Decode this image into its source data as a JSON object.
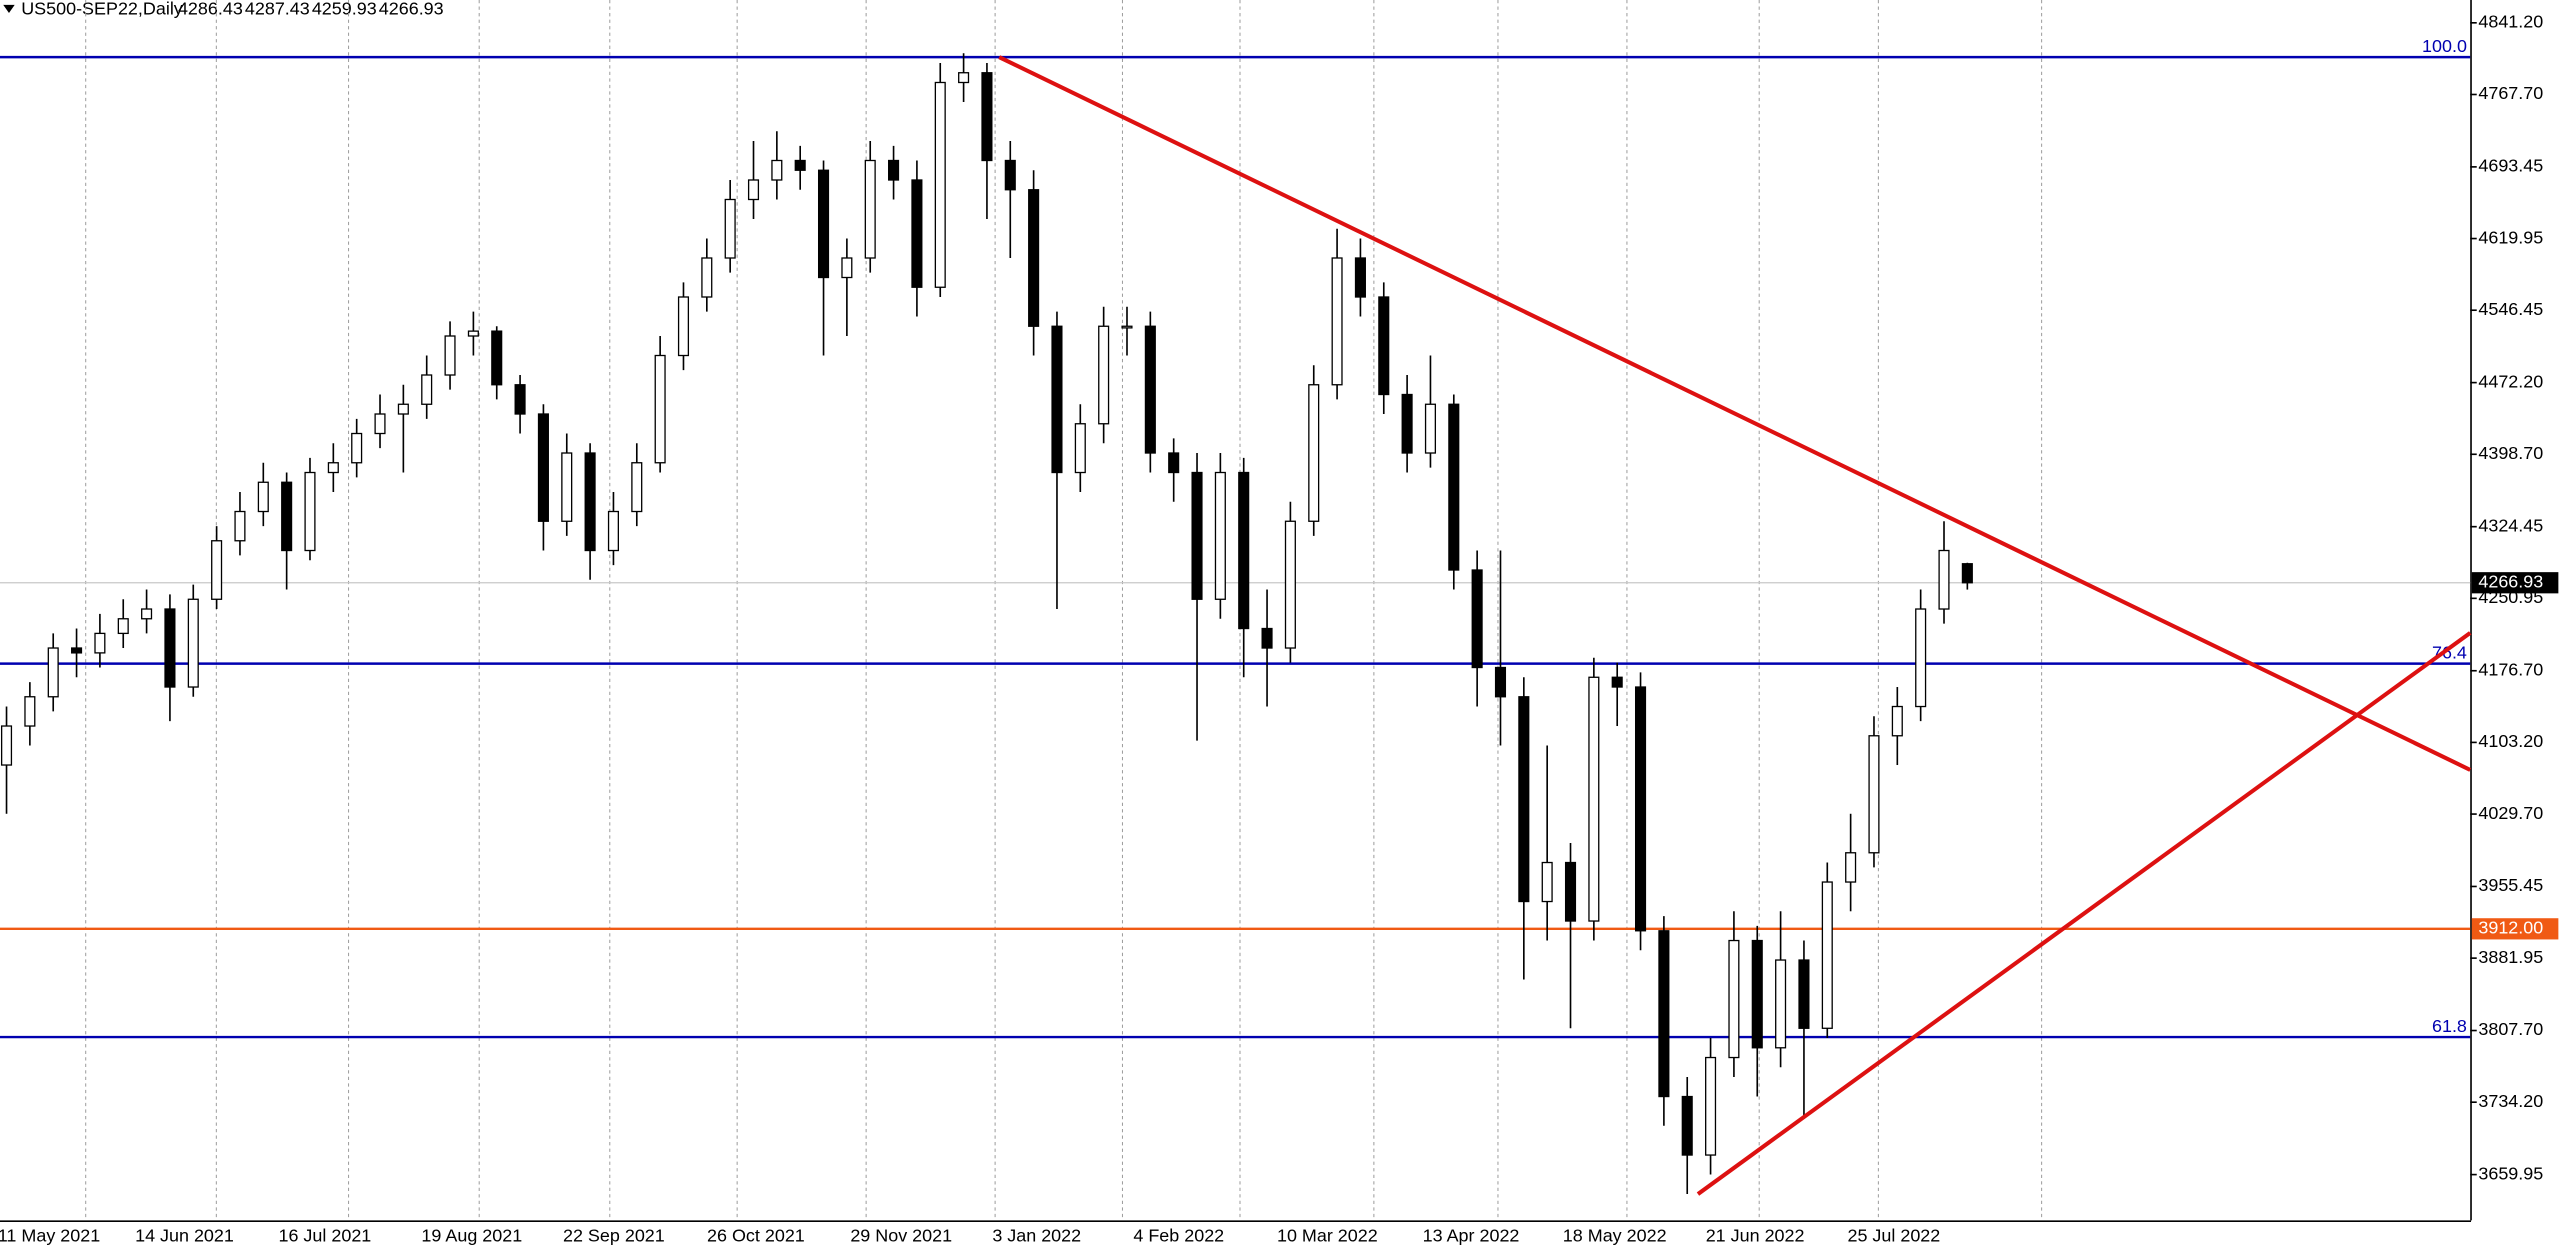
{
  "chart_data": {
    "type": "candlestick",
    "symbol": "US500-SEP22,Daily",
    "header_ohlc": [
      4286.43,
      4287.43,
      4259.93,
      4266.93
    ],
    "up_color": "#ffffff",
    "down_color": "#000000",
    "ylim": [
      3613,
      4864.6
    ],
    "yticks": [
      {
        "value": 4841.2,
        "label": "4841.20"
      },
      {
        "value": 4767.7,
        "label": "4767.70"
      },
      4693.45,
      4619.95,
      4546.45,
      {
        "value": 4472.2,
        "label": "4472.20"
      },
      {
        "value": 4398.7,
        "label": "4398.70"
      },
      4324.45,
      4250.95,
      {
        "value": 4176.7,
        "label": "4176.70"
      },
      {
        "value": 4103.2,
        "label": "4103.20"
      },
      {
        "value": 4029.7,
        "label": "4029.70"
      },
      3955.45,
      3881.95,
      {
        "value": 3807.7,
        "label": "3807.70"
      },
      {
        "value": 3734.2,
        "label": "3734.20"
      },
      3659.95
    ],
    "categories": [
      "11 May 2021",
      "14 Jun 2021",
      "16 Jul 2021",
      "19 Aug 2021",
      "22 Sep 2021",
      "26 Oct 2021",
      "29 Nov 2021",
      "3 Jan 2022",
      "4 Feb 2022",
      "10 Mar 2022",
      "13 Apr 2022",
      "18 May 2022",
      "21 Jun 2022",
      "25 Jul 2022"
    ],
    "ohlc": [
      [
        4080,
        4140,
        4030,
        4120
      ],
      [
        4120,
        4165,
        4100,
        4150
      ],
      [
        4150,
        4215,
        4135,
        4200
      ],
      [
        4200,
        4220,
        4170,
        4195
      ],
      [
        4195,
        4235,
        4180,
        4215
      ],
      [
        4215,
        4250,
        4200,
        4230
      ],
      [
        4230,
        4260,
        4215,
        4240
      ],
      [
        4240,
        4255,
        4125,
        4160
      ],
      [
        4160,
        4265,
        4150,
        4250
      ],
      [
        4250,
        4325,
        4240,
        4310
      ],
      [
        4310,
        4360,
        4295,
        4340
      ],
      [
        4340,
        4390,
        4325,
        4370
      ],
      [
        4370,
        4380,
        4260,
        4300
      ],
      [
        4300,
        4395,
        4290,
        4380
      ],
      [
        4380,
        4410,
        4360,
        4390
      ],
      [
        4390,
        4435,
        4375,
        4420
      ],
      [
        4420,
        4460,
        4405,
        4440
      ],
      [
        4440,
        4470,
        4380,
        4450
      ],
      [
        4450,
        4500,
        4435,
        4480
      ],
      [
        4480,
        4535,
        4465,
        4520
      ],
      [
        4520,
        4545,
        4500,
        4525
      ],
      [
        4525,
        4530,
        4455,
        4470
      ],
      [
        4470,
        4480,
        4420,
        4440
      ],
      [
        4440,
        4450,
        4300,
        4330
      ],
      [
        4330,
        4420,
        4315,
        4400
      ],
      [
        4400,
        4410,
        4270,
        4300
      ],
      [
        4300,
        4360,
        4285,
        4340
      ],
      [
        4340,
        4410,
        4325,
        4390
      ],
      [
        4390,
        4520,
        4380,
        4500
      ],
      [
        4500,
        4575,
        4485,
        4560
      ],
      [
        4560,
        4620,
        4545,
        4600
      ],
      [
        4600,
        4680,
        4585,
        4660
      ],
      [
        4660,
        4720,
        4640,
        4680
      ],
      [
        4680,
        4730,
        4660,
        4700
      ],
      [
        4700,
        4715,
        4670,
        4690
      ],
      [
        4690,
        4700,
        4500,
        4580
      ],
      [
        4580,
        4620,
        4520,
        4600
      ],
      [
        4600,
        4720,
        4585,
        4700
      ],
      [
        4700,
        4715,
        4660,
        4680
      ],
      [
        4680,
        4700,
        4540,
        4570
      ],
      [
        4570,
        4800,
        4560,
        4780
      ],
      [
        4780,
        4810,
        4760,
        4790
      ],
      [
        4790,
        4800,
        4640,
        4700
      ],
      [
        4700,
        4720,
        4600,
        4670
      ],
      [
        4670,
        4690,
        4500,
        4530
      ],
      [
        4530,
        4545,
        4240,
        4380
      ],
      [
        4380,
        4450,
        4360,
        4430
      ],
      [
        4430,
        4550,
        4410,
        4530
      ],
      [
        4530,
        4550,
        4500,
        4530
      ],
      [
        4530,
        4545,
        4380,
        4400
      ],
      [
        4400,
        4415,
        4350,
        4380
      ],
      [
        4380,
        4400,
        4105,
        4250
      ],
      [
        4250,
        4400,
        4230,
        4380
      ],
      [
        4380,
        4395,
        4170,
        4220
      ],
      [
        4220,
        4260,
        4140,
        4200
      ],
      [
        4200,
        4350,
        4185,
        4330
      ],
      [
        4330,
        4490,
        4315,
        4470
      ],
      [
        4470,
        4630,
        4455,
        4600
      ],
      [
        4600,
        4620,
        4540,
        4560
      ],
      [
        4560,
        4575,
        4440,
        4460
      ],
      [
        4460,
        4480,
        4380,
        4400
      ],
      [
        4400,
        4500,
        4385,
        4450
      ],
      [
        4450,
        4460,
        4260,
        4280
      ],
      [
        4280,
        4300,
        4140,
        4180
      ],
      [
        4180,
        4300,
        4100,
        4150
      ],
      [
        4150,
        4170,
        3860,
        3940
      ],
      [
        3940,
        4100,
        3900,
        3980
      ],
      [
        3980,
        4000,
        3810,
        3920
      ],
      [
        3920,
        4190,
        3900,
        4170
      ],
      [
        4170,
        4185,
        4120,
        4160
      ],
      [
        4160,
        4175,
        3890,
        3910
      ],
      [
        3910,
        3925,
        3710,
        3740
      ],
      [
        3740,
        3760,
        3640,
        3680
      ],
      [
        3680,
        3800,
        3660,
        3780
      ],
      [
        3780,
        3930,
        3760,
        3900
      ],
      [
        3900,
        3915,
        3740,
        3790
      ],
      [
        3790,
        3930,
        3770,
        3880
      ],
      [
        3880,
        3900,
        3720,
        3810
      ],
      [
        3810,
        3980,
        3800,
        3960
      ],
      [
        3960,
        4030,
        3930,
        3990
      ],
      [
        3990,
        4130,
        3975,
        4110
      ],
      [
        4110,
        4160,
        4080,
        4140
      ],
      [
        4140,
        4260,
        4125,
        4240
      ],
      [
        4240,
        4330,
        4225,
        4300
      ],
      [
        4286.43,
        4287.43,
        4259.93,
        4266.93
      ]
    ],
    "current_price": 4266.93,
    "fib_levels": [
      {
        "name": "100.0",
        "value": 4806,
        "color": "#0000b0"
      },
      {
        "name": "76.4",
        "value": 4184,
        "color": "#0000b0"
      },
      {
        "name": "61.8",
        "value": 3801,
        "color": "#0000b0"
      }
    ],
    "support": {
      "value": 3912,
      "label": "3912.00",
      "color": "#f05a14"
    },
    "trendlines": [
      {
        "start": 4806,
        "end": 4075,
        "color": "#dd1111"
      },
      {
        "start": 3640,
        "end": 4215.5,
        "color": "#dd1111"
      }
    ]
  }
}
